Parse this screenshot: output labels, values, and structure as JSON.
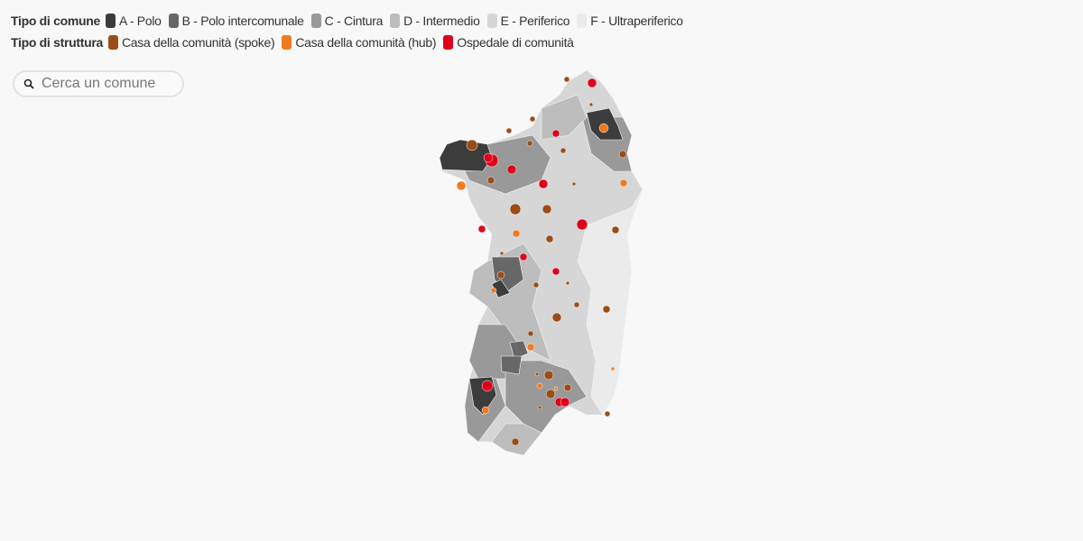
{
  "legend": {
    "comune": {
      "title": "Tipo di comune",
      "items": [
        {
          "label": "A - Polo",
          "color": "#3c3c3c"
        },
        {
          "label": "B - Polo intercomunale",
          "color": "#676767"
        },
        {
          "label": "C - Cintura",
          "color": "#999999"
        },
        {
          "label": "D - Intermedio",
          "color": "#bdbdbd"
        },
        {
          "label": "E - Periferico",
          "color": "#d6d6d6"
        },
        {
          "label": "F - Ultraperiferico",
          "color": "#ebebeb"
        }
      ]
    },
    "struttura": {
      "title": "Tipo di struttura",
      "items": [
        {
          "label": "Casa della comunità (spoke)",
          "color": "#9a4d17"
        },
        {
          "label": "Casa della comunità (hub)",
          "color": "#ee7a22"
        },
        {
          "label": "Ospedale di comunità",
          "color": "#e0001b"
        }
      ]
    }
  },
  "search": {
    "placeholder": "Cerca un comune"
  }
}
